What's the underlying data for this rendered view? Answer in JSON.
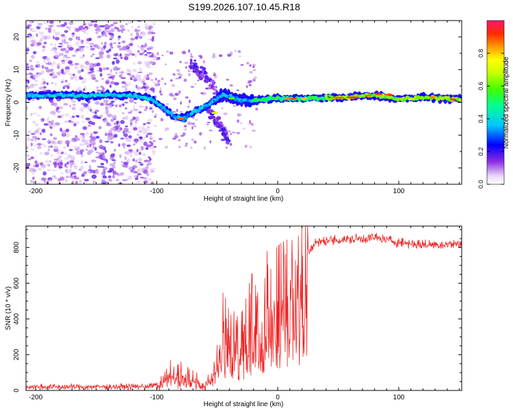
{
  "figure": {
    "title": "S199.2026.107.10.45.R18"
  },
  "chart_data": [
    {
      "type": "heatmap",
      "name": "spectrogram",
      "xlabel": "Height of straight line (km)",
      "ylabel": "Frequency (Hz)",
      "xlim": [
        -208,
        152
      ],
      "ylim": [
        -25,
        25
      ],
      "xticks": [
        -200,
        -100,
        0,
        100
      ],
      "yticks": [
        -20,
        -10,
        0,
        10,
        20
      ],
      "colorbar": {
        "label": "Normalized spectral amplitude",
        "range": [
          0,
          1
        ],
        "ticks": [
          0.0,
          0.2,
          0.4,
          0.6,
          0.8
        ]
      },
      "ridge_track": [
        {
          "x": -205,
          "f": 2.0
        },
        {
          "x": -180,
          "f": 2.2
        },
        {
          "x": -160,
          "f": 2.0
        },
        {
          "x": -140,
          "f": 2.3
        },
        {
          "x": -120,
          "f": 2.1
        },
        {
          "x": -105,
          "f": 1.2
        },
        {
          "x": -95,
          "f": -1.5
        },
        {
          "x": -85,
          "f": -4.5
        },
        {
          "x": -78,
          "f": -5.0
        },
        {
          "x": -68,
          "f": -2.5
        },
        {
          "x": -58,
          "f": -1.0
        },
        {
          "x": -45,
          "f": 2.5
        },
        {
          "x": -35,
          "f": 1.0
        },
        {
          "x": -20,
          "f": 0.5
        },
        {
          "x": 0,
          "f": 1.3
        },
        {
          "x": 20,
          "f": 1.2
        },
        {
          "x": 50,
          "f": 1.4
        },
        {
          "x": 80,
          "f": 2.2
        },
        {
          "x": 100,
          "f": 1.0
        },
        {
          "x": 125,
          "f": 1.6
        },
        {
          "x": 150,
          "f": 0.9
        }
      ],
      "branches": [
        [
          {
            "x": -72,
            "f": 12
          },
          {
            "x": -60,
            "f": 8
          },
          {
            "x": -50,
            "f": 3
          }
        ],
        [
          {
            "x": -58,
            "f": -2
          },
          {
            "x": -48,
            "f": -7
          },
          {
            "x": -40,
            "f": -12
          }
        ]
      ]
    },
    {
      "type": "line",
      "name": "snr",
      "xlabel": "Height of straight line (km)",
      "ylabel": "SNR (10 * v/v)",
      "xlim": [
        -208,
        152
      ],
      "ylim": [
        0,
        920
      ],
      "xticks": [
        -200,
        -100,
        0,
        100
      ],
      "yticks": [
        0,
        200,
        400,
        600,
        800
      ],
      "color": "#ee2020",
      "envelope": [
        {
          "x": -208,
          "y": 20
        },
        {
          "x": -150,
          "y": 20
        },
        {
          "x": -110,
          "y": 22
        },
        {
          "x": -100,
          "y": 30
        },
        {
          "x": -90,
          "y": 110
        },
        {
          "x": -80,
          "y": 120
        },
        {
          "x": -70,
          "y": 70
        },
        {
          "x": -60,
          "y": 40
        },
        {
          "x": -55,
          "y": 70
        },
        {
          "x": -48,
          "y": 220
        },
        {
          "x": -45,
          "y": 350
        },
        {
          "x": -40,
          "y": 280
        },
        {
          "x": -35,
          "y": 320
        },
        {
          "x": -30,
          "y": 300
        },
        {
          "x": -25,
          "y": 380
        },
        {
          "x": -20,
          "y": 420
        },
        {
          "x": -15,
          "y": 400
        },
        {
          "x": -10,
          "y": 500
        },
        {
          "x": -5,
          "y": 560
        },
        {
          "x": 0,
          "y": 600
        },
        {
          "x": 5,
          "y": 620
        },
        {
          "x": 10,
          "y": 640
        },
        {
          "x": 15,
          "y": 660
        },
        {
          "x": 20,
          "y": 700
        },
        {
          "x": 25,
          "y": 770
        },
        {
          "x": 30,
          "y": 820
        },
        {
          "x": 40,
          "y": 840
        },
        {
          "x": 60,
          "y": 845
        },
        {
          "x": 80,
          "y": 855
        },
        {
          "x": 100,
          "y": 830
        },
        {
          "x": 120,
          "y": 815
        },
        {
          "x": 152,
          "y": 820
        }
      ]
    }
  ]
}
